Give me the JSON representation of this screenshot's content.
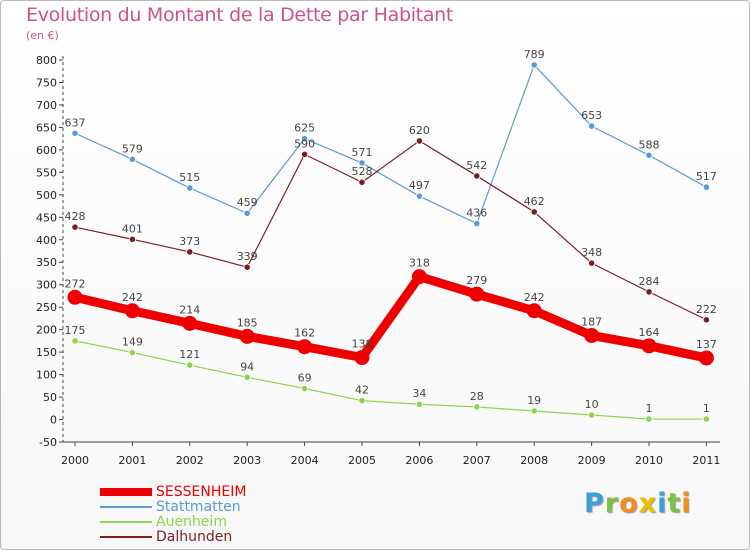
{
  "header": {
    "title": "Evolution du Montant de la Dette par Habitant",
    "subtitle": "(en €)"
  },
  "chart_data": {
    "type": "line",
    "title": "Evolution du Montant de la Dette par Habitant",
    "ylabel": "(en €)",
    "xlabel": "",
    "ylim": [
      -50,
      800
    ],
    "ytick_step": 50,
    "categories": [
      "2000",
      "2001",
      "2002",
      "2003",
      "2004",
      "2005",
      "2006",
      "2007",
      "2008",
      "2009",
      "2010",
      "2011"
    ],
    "grid": false,
    "legend_position": "bottom-left",
    "series": [
      {
        "name": "Stattmatten",
        "color": "#5b9bd5",
        "values": [
          637,
          579,
          515,
          459,
          625,
          571,
          497,
          436,
          789,
          653,
          588,
          517
        ]
      },
      {
        "name": "Dalhunden",
        "color": "#7b1e22",
        "values": [
          428,
          401,
          373,
          339,
          590,
          528,
          620,
          542,
          462,
          348,
          284,
          222
        ]
      },
      {
        "name": "Auenheim",
        "color": "#8dd34e",
        "values": [
          175,
          149,
          121,
          94,
          69,
          42,
          34,
          28,
          19,
          10,
          1,
          1
        ]
      },
      {
        "name": "SESSENHEIM",
        "color": "#ee0000",
        "values": [
          272,
          242,
          214,
          185,
          162,
          138,
          318,
          279,
          242,
          187,
          164,
          137
        ]
      }
    ]
  },
  "legend": {
    "items": [
      {
        "label": "SESSENHEIM",
        "color": "#ee0000"
      },
      {
        "label": "Stattmatten",
        "color": "#5b9bd5"
      },
      {
        "label": "Auenheim",
        "color": "#8dd34e"
      },
      {
        "label": "Dalhunden",
        "color": "#7b1e22"
      }
    ]
  },
  "logo": {
    "letters": [
      "P",
      "r",
      "o",
      "x",
      "i",
      "t",
      "i"
    ],
    "colors": [
      "#3aa0d8",
      "#7cc242",
      "#f28c1b",
      "#e8c000",
      "#3aa0d8",
      "#7cc242",
      "#f28c1b"
    ]
  }
}
